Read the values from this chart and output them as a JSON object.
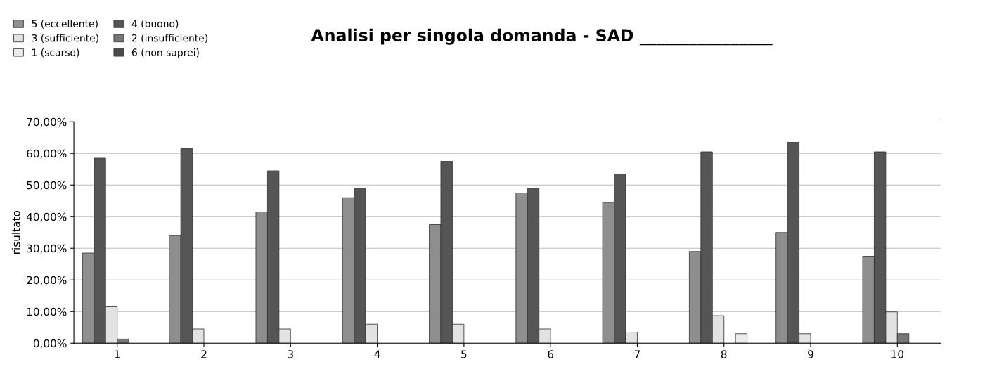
{
  "chart_data": {
    "type": "bar",
    "title": "Analisi per singola domanda - SAD ________________",
    "ylabel": "risultato",
    "categories": [
      "1",
      "2",
      "3",
      "4",
      "5",
      "6",
      "7",
      "8",
      "9",
      "10"
    ],
    "series": [
      {
        "name": "5 (eccellente)",
        "color": "#8e8e8e",
        "values": [
          28.5,
          34,
          41.5,
          46,
          37.5,
          47.5,
          44.5,
          29,
          35,
          27.5
        ]
      },
      {
        "name": "4 (buono)",
        "color": "#555555",
        "values": [
          58.5,
          61.5,
          54.5,
          49,
          57.5,
          49,
          53.5,
          60.5,
          63.5,
          60.5
        ]
      },
      {
        "name": "3 (sufficiente)",
        "color": "#e2e2e2",
        "values": [
          11.5,
          4.5,
          4.5,
          6,
          6,
          4.5,
          3.5,
          8.7,
          3,
          9.9
        ]
      },
      {
        "name": "2 (insufficiente)",
        "color": "#767676",
        "values": [
          1.3,
          0,
          0,
          0,
          0,
          0,
          0,
          0,
          0,
          3
        ]
      },
      {
        "name": "1 (scarso)",
        "color": "#ececec",
        "values": [
          0,
          0,
          0,
          0,
          0,
          0,
          0,
          3,
          0,
          0
        ]
      },
      {
        "name": "6 (non saprei)",
        "color": "#4a4a4a",
        "values": [
          0,
          0,
          0,
          0,
          0,
          0,
          0,
          0,
          0,
          0
        ]
      }
    ],
    "ylim": [
      0,
      70
    ],
    "yticks": [
      {
        "value": 0,
        "label": "0,00%"
      },
      {
        "value": 10,
        "label": "10,00%"
      },
      {
        "value": 20,
        "label": "20,00%"
      },
      {
        "value": 30,
        "label": "30,00%"
      },
      {
        "value": 40,
        "label": "40,00%"
      },
      {
        "value": 50,
        "label": "50,00%"
      },
      {
        "value": 60,
        "label": "60,00%"
      },
      {
        "value": 70,
        "label": "70,00%"
      }
    ],
    "grid": "y",
    "legend": "top left"
  }
}
